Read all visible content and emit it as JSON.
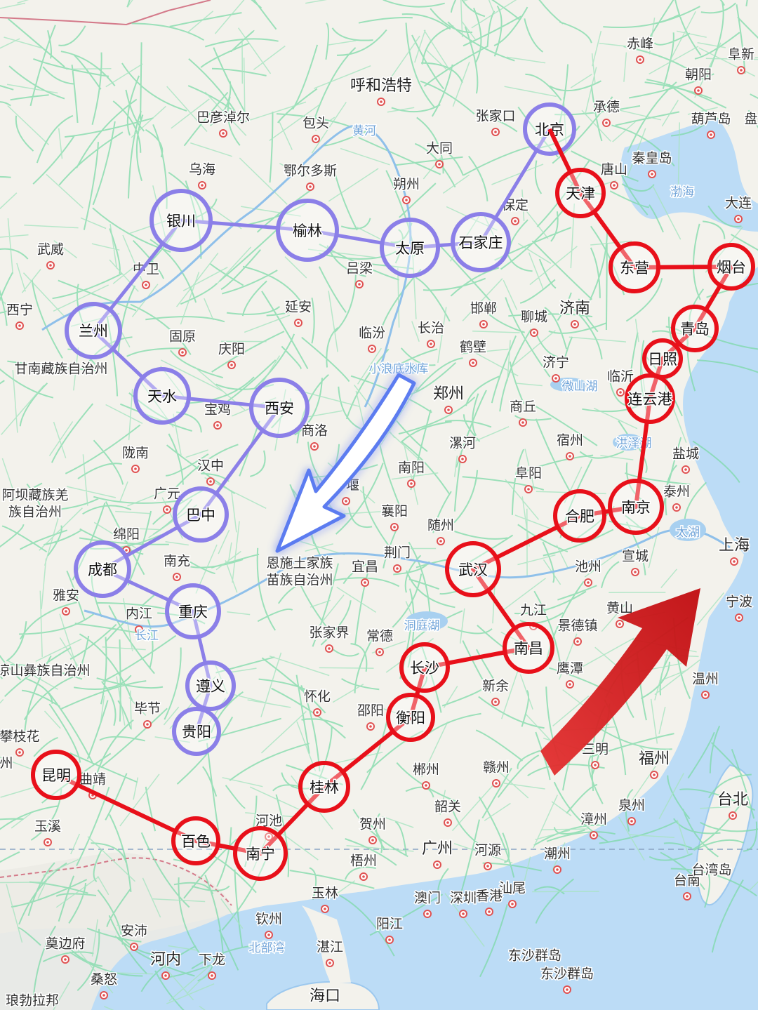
{
  "map": {
    "cities": [
      {
        "name": "呼和浩特"
      },
      {
        "name": "包头"
      },
      {
        "name": "巴彦淖尔"
      },
      {
        "name": "乌海"
      },
      {
        "name": "鄂尔多斯"
      },
      {
        "name": "张家口"
      },
      {
        "name": "大同"
      },
      {
        "name": "朔州"
      },
      {
        "name": "保定"
      },
      {
        "name": "承德"
      },
      {
        "name": "唐山"
      },
      {
        "name": "秦皇岛"
      },
      {
        "name": "赤峰"
      },
      {
        "name": "阜新"
      },
      {
        "name": "朝阳"
      },
      {
        "name": "葫芦岛"
      },
      {
        "name": "盘"
      },
      {
        "name": "大连"
      },
      {
        "name": "武威"
      },
      {
        "name": "中卫"
      },
      {
        "name": "西宁"
      },
      {
        "name": "固原"
      },
      {
        "name": "庆阳"
      },
      {
        "name": "延安"
      },
      {
        "name": "吕梁"
      },
      {
        "name": "临汾"
      },
      {
        "name": "长治"
      },
      {
        "name": "邯郸"
      },
      {
        "name": "聊城"
      },
      {
        "name": "济南"
      },
      {
        "name": "鹤壁"
      },
      {
        "name": "济宁"
      },
      {
        "name": "临沂"
      },
      {
        "name": "郑州"
      },
      {
        "name": "商丘"
      },
      {
        "name": "宿州"
      },
      {
        "name": "漯河"
      },
      {
        "name": "阜阳"
      },
      {
        "name": "盐城"
      },
      {
        "name": "泰州"
      },
      {
        "name": "宝鸡"
      },
      {
        "name": "商洛"
      },
      {
        "name": "陇南"
      },
      {
        "name": "汉中"
      },
      {
        "name": "广元"
      },
      {
        "name": "南阳"
      },
      {
        "name": "十堰"
      },
      {
        "name": "襄阳"
      },
      {
        "name": "随州"
      },
      {
        "name": "绵阳"
      },
      {
        "name": "南充"
      },
      {
        "name": "雅安"
      },
      {
        "name": "内江"
      },
      {
        "name": "荆门"
      },
      {
        "name": "宜昌"
      },
      {
        "name": "上海"
      },
      {
        "name": "宣城"
      },
      {
        "name": "池州"
      },
      {
        "name": "黄山"
      },
      {
        "name": "宁波"
      },
      {
        "name": "九江"
      },
      {
        "name": "景德镇"
      },
      {
        "name": "张家界"
      },
      {
        "name": "常德"
      },
      {
        "name": "鹰潭"
      },
      {
        "name": "温州"
      },
      {
        "name": "新余"
      },
      {
        "name": "怀化"
      },
      {
        "name": "邵阳"
      },
      {
        "name": "毕节"
      },
      {
        "name": "攀枝花"
      },
      {
        "name": "曲靖"
      },
      {
        "name": "三明"
      },
      {
        "name": "福州"
      },
      {
        "name": "郴州"
      },
      {
        "name": "赣州"
      },
      {
        "name": "韶关"
      },
      {
        "name": "泉州"
      },
      {
        "name": "漳州"
      },
      {
        "name": "台北"
      },
      {
        "name": "玉溪"
      },
      {
        "name": "河池"
      },
      {
        "name": "贺州"
      },
      {
        "name": "梧州"
      },
      {
        "name": "广州"
      },
      {
        "name": "河源"
      },
      {
        "name": "潮州"
      },
      {
        "name": "汕尾"
      },
      {
        "name": "台南"
      },
      {
        "name": "台湾岛"
      },
      {
        "name": "澳门"
      },
      {
        "name": "深圳"
      },
      {
        "name": "香港"
      },
      {
        "name": "玉林"
      },
      {
        "name": "钦州"
      },
      {
        "name": "阳江"
      },
      {
        "name": "湛江"
      },
      {
        "name": "安沛"
      },
      {
        "name": "奠边府"
      },
      {
        "name": "河内"
      },
      {
        "name": "下龙"
      },
      {
        "name": "桑怒"
      },
      {
        "name": "琅勃拉邦"
      },
      {
        "name": "海口"
      },
      {
        "name": "东沙群岛"
      },
      {
        "name": "东沙群岛"
      }
    ],
    "regions": [
      {
        "name": "甘南藏族自治州"
      },
      {
        "name": "阿坝藏族羌"
      },
      {
        "name": "族自治州"
      },
      {
        "name": "恩施土家族"
      },
      {
        "name": "苗族自治州"
      },
      {
        "name": "凉山彝族自治州"
      },
      {
        "name": "州"
      }
    ],
    "water": [
      {
        "name": "黄河"
      },
      {
        "name": "渤海"
      },
      {
        "name": "小浪底水库"
      },
      {
        "name": "微山湖"
      },
      {
        "name": "洪泽湖"
      },
      {
        "name": "太湖"
      },
      {
        "name": "洞庭湖"
      },
      {
        "name": "长江"
      },
      {
        "name": "北部湾"
      }
    ]
  },
  "purple_route": {
    "color": "#8b7fe8",
    "stops": [
      {
        "name": "北京"
      },
      {
        "name": "石家庄"
      },
      {
        "name": "太原"
      },
      {
        "name": "榆林"
      },
      {
        "name": "银川"
      },
      {
        "name": "兰州"
      },
      {
        "name": "天水"
      },
      {
        "name": "西安"
      },
      {
        "name": "巴中"
      },
      {
        "name": "成都"
      },
      {
        "name": "重庆"
      },
      {
        "name": "遵义"
      },
      {
        "name": "贵阳"
      }
    ]
  },
  "red_route": {
    "color": "#e8101a",
    "stops": [
      {
        "name": "北京"
      },
      {
        "name": "天津"
      },
      {
        "name": "东营"
      },
      {
        "name": "烟台"
      },
      {
        "name": "青岛"
      },
      {
        "name": "日照"
      },
      {
        "name": "连云港"
      },
      {
        "name": "南京"
      },
      {
        "name": "合肥"
      },
      {
        "name": "武汉"
      },
      {
        "name": "南昌"
      },
      {
        "name": "长沙"
      },
      {
        "name": "衡阳"
      },
      {
        "name": "桂林"
      },
      {
        "name": "南宁"
      },
      {
        "name": "百色"
      },
      {
        "name": "昆明"
      }
    ]
  },
  "arrows": [
    {
      "name": "blue-arrow",
      "color": "#5b7cf0"
    },
    {
      "name": "red-arrow",
      "color": "#dd1b1b"
    }
  ]
}
